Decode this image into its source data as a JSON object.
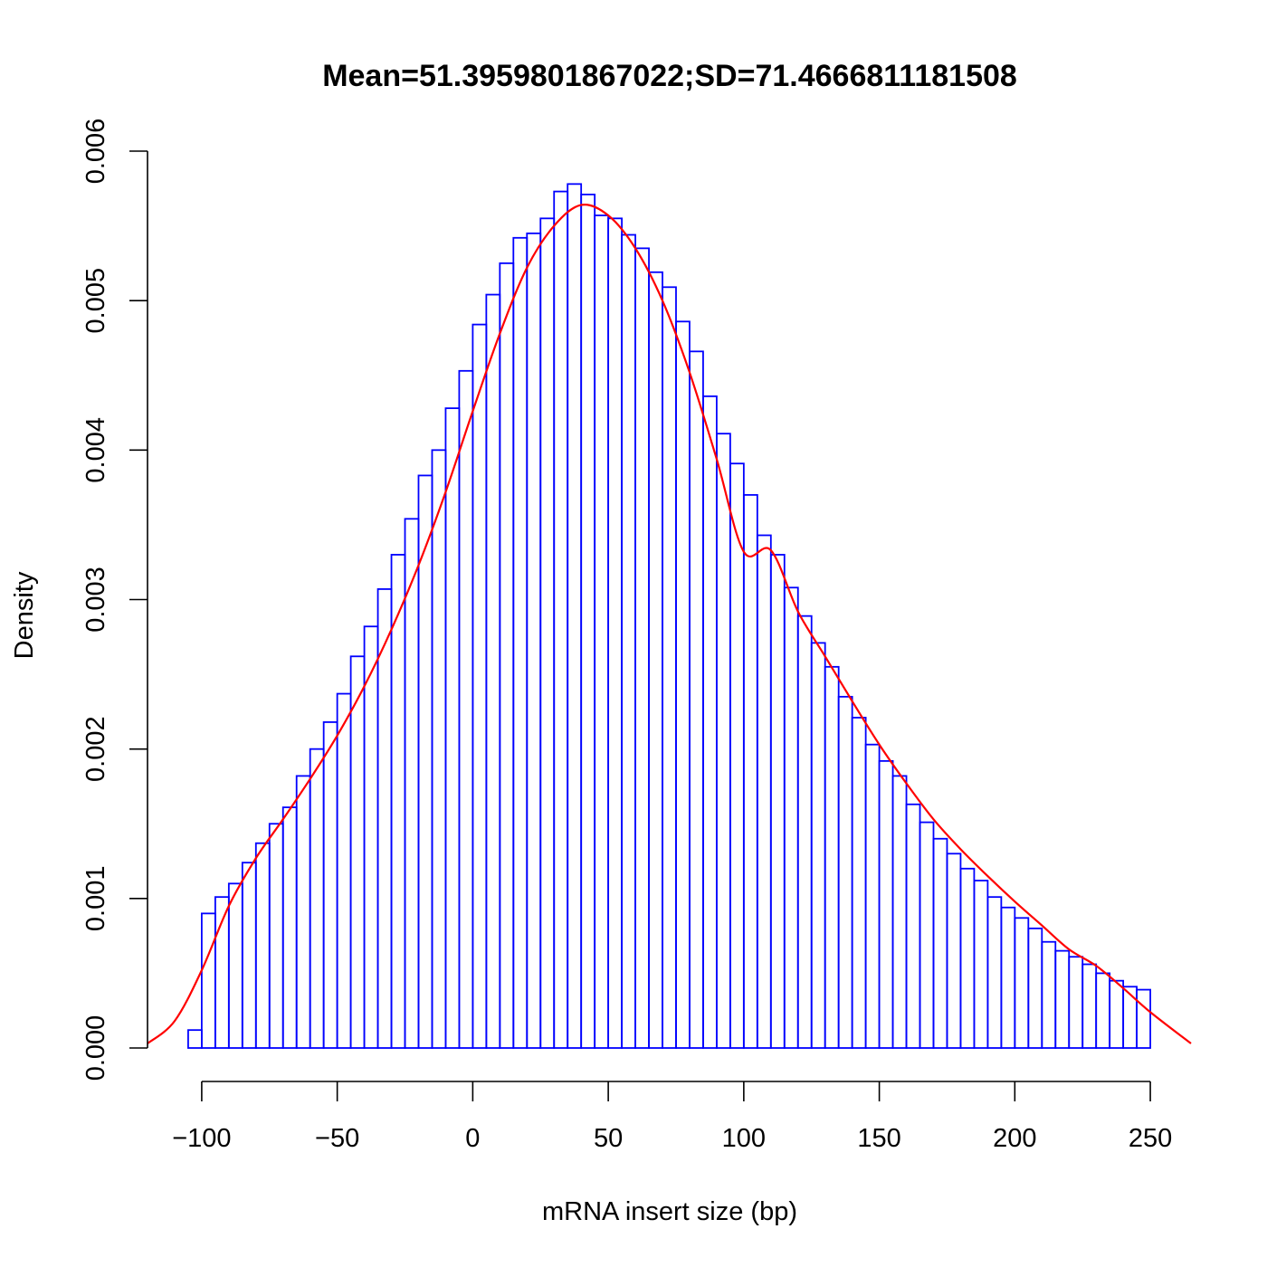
{
  "chart_data": {
    "type": "bar",
    "title": "Mean=51.3959801867022;SD=71.4666811181508",
    "xlabel": "mRNA insert size (bp)",
    "ylabel": "Density",
    "xlim": [
      -120,
      265
    ],
    "ylim": [
      0,
      0.006
    ],
    "x_ticks": [
      -100,
      -50,
      0,
      50,
      100,
      150,
      200,
      250
    ],
    "x_tick_labels": [
      "−100",
      "−50",
      "0",
      "50",
      "100",
      "150",
      "200",
      "250"
    ],
    "y_ticks": [
      0,
      0.001,
      0.002,
      0.003,
      0.004,
      0.005,
      0.006
    ],
    "y_tick_labels": [
      "0.000",
      "0.001",
      "0.002",
      "0.003",
      "0.004",
      "0.005",
      "0.006"
    ],
    "bin_start": -105,
    "bin_width": 5,
    "bar_color": "#0000ff",
    "curve_color": "#ff0000",
    "grid": false,
    "series": [
      {
        "kind": "histogram",
        "values": [
          0.00012,
          0.0009,
          0.00101,
          0.0011,
          0.00124,
          0.00137,
          0.0015,
          0.00161,
          0.00182,
          0.002,
          0.00218,
          0.00237,
          0.00262,
          0.00282,
          0.00307,
          0.0033,
          0.00354,
          0.00383,
          0.004,
          0.00428,
          0.00453,
          0.00484,
          0.00504,
          0.00525,
          0.00542,
          0.00545,
          0.00555,
          0.00573,
          0.00578,
          0.00571,
          0.00557,
          0.00555,
          0.00544,
          0.00535,
          0.00519,
          0.00509,
          0.00486,
          0.00466,
          0.00436,
          0.00411,
          0.00391,
          0.0037,
          0.00343,
          0.0033,
          0.00308,
          0.00289,
          0.00271,
          0.00255,
          0.00235,
          0.00221,
          0.00203,
          0.00192,
          0.00182,
          0.00163,
          0.00151,
          0.0014,
          0.0013,
          0.0012,
          0.00112,
          0.00101,
          0.00094,
          0.00087,
          0.0008,
          0.00071,
          0.00065,
          0.00061,
          0.00056,
          0.0005,
          0.00045,
          0.00041,
          0.00039
        ]
      },
      {
        "kind": "density",
        "x": [
          -120,
          -110,
          -100,
          -90,
          -80,
          -70,
          -60,
          -50,
          -40,
          -30,
          -20,
          -10,
          0,
          10,
          20,
          30,
          40,
          50,
          60,
          70,
          80,
          90,
          100,
          110,
          120,
          130,
          140,
          150,
          160,
          170,
          180,
          190,
          200,
          210,
          220,
          230,
          240,
          250,
          265
        ],
        "y": [
          3e-05,
          0.00018,
          0.00052,
          0.00095,
          0.00127,
          0.00153,
          0.0018,
          0.00209,
          0.00242,
          0.0028,
          0.00323,
          0.00372,
          0.00426,
          0.00478,
          0.00522,
          0.0055,
          0.00564,
          0.00557,
          0.00535,
          0.005,
          0.00452,
          0.00394,
          0.00332,
          0.00333,
          0.00292,
          0.00262,
          0.00232,
          0.00203,
          0.00177,
          0.00153,
          0.00133,
          0.00115,
          0.00098,
          0.00082,
          0.00066,
          0.00055,
          0.0004,
          0.00024,
          3e-05
        ]
      }
    ]
  }
}
